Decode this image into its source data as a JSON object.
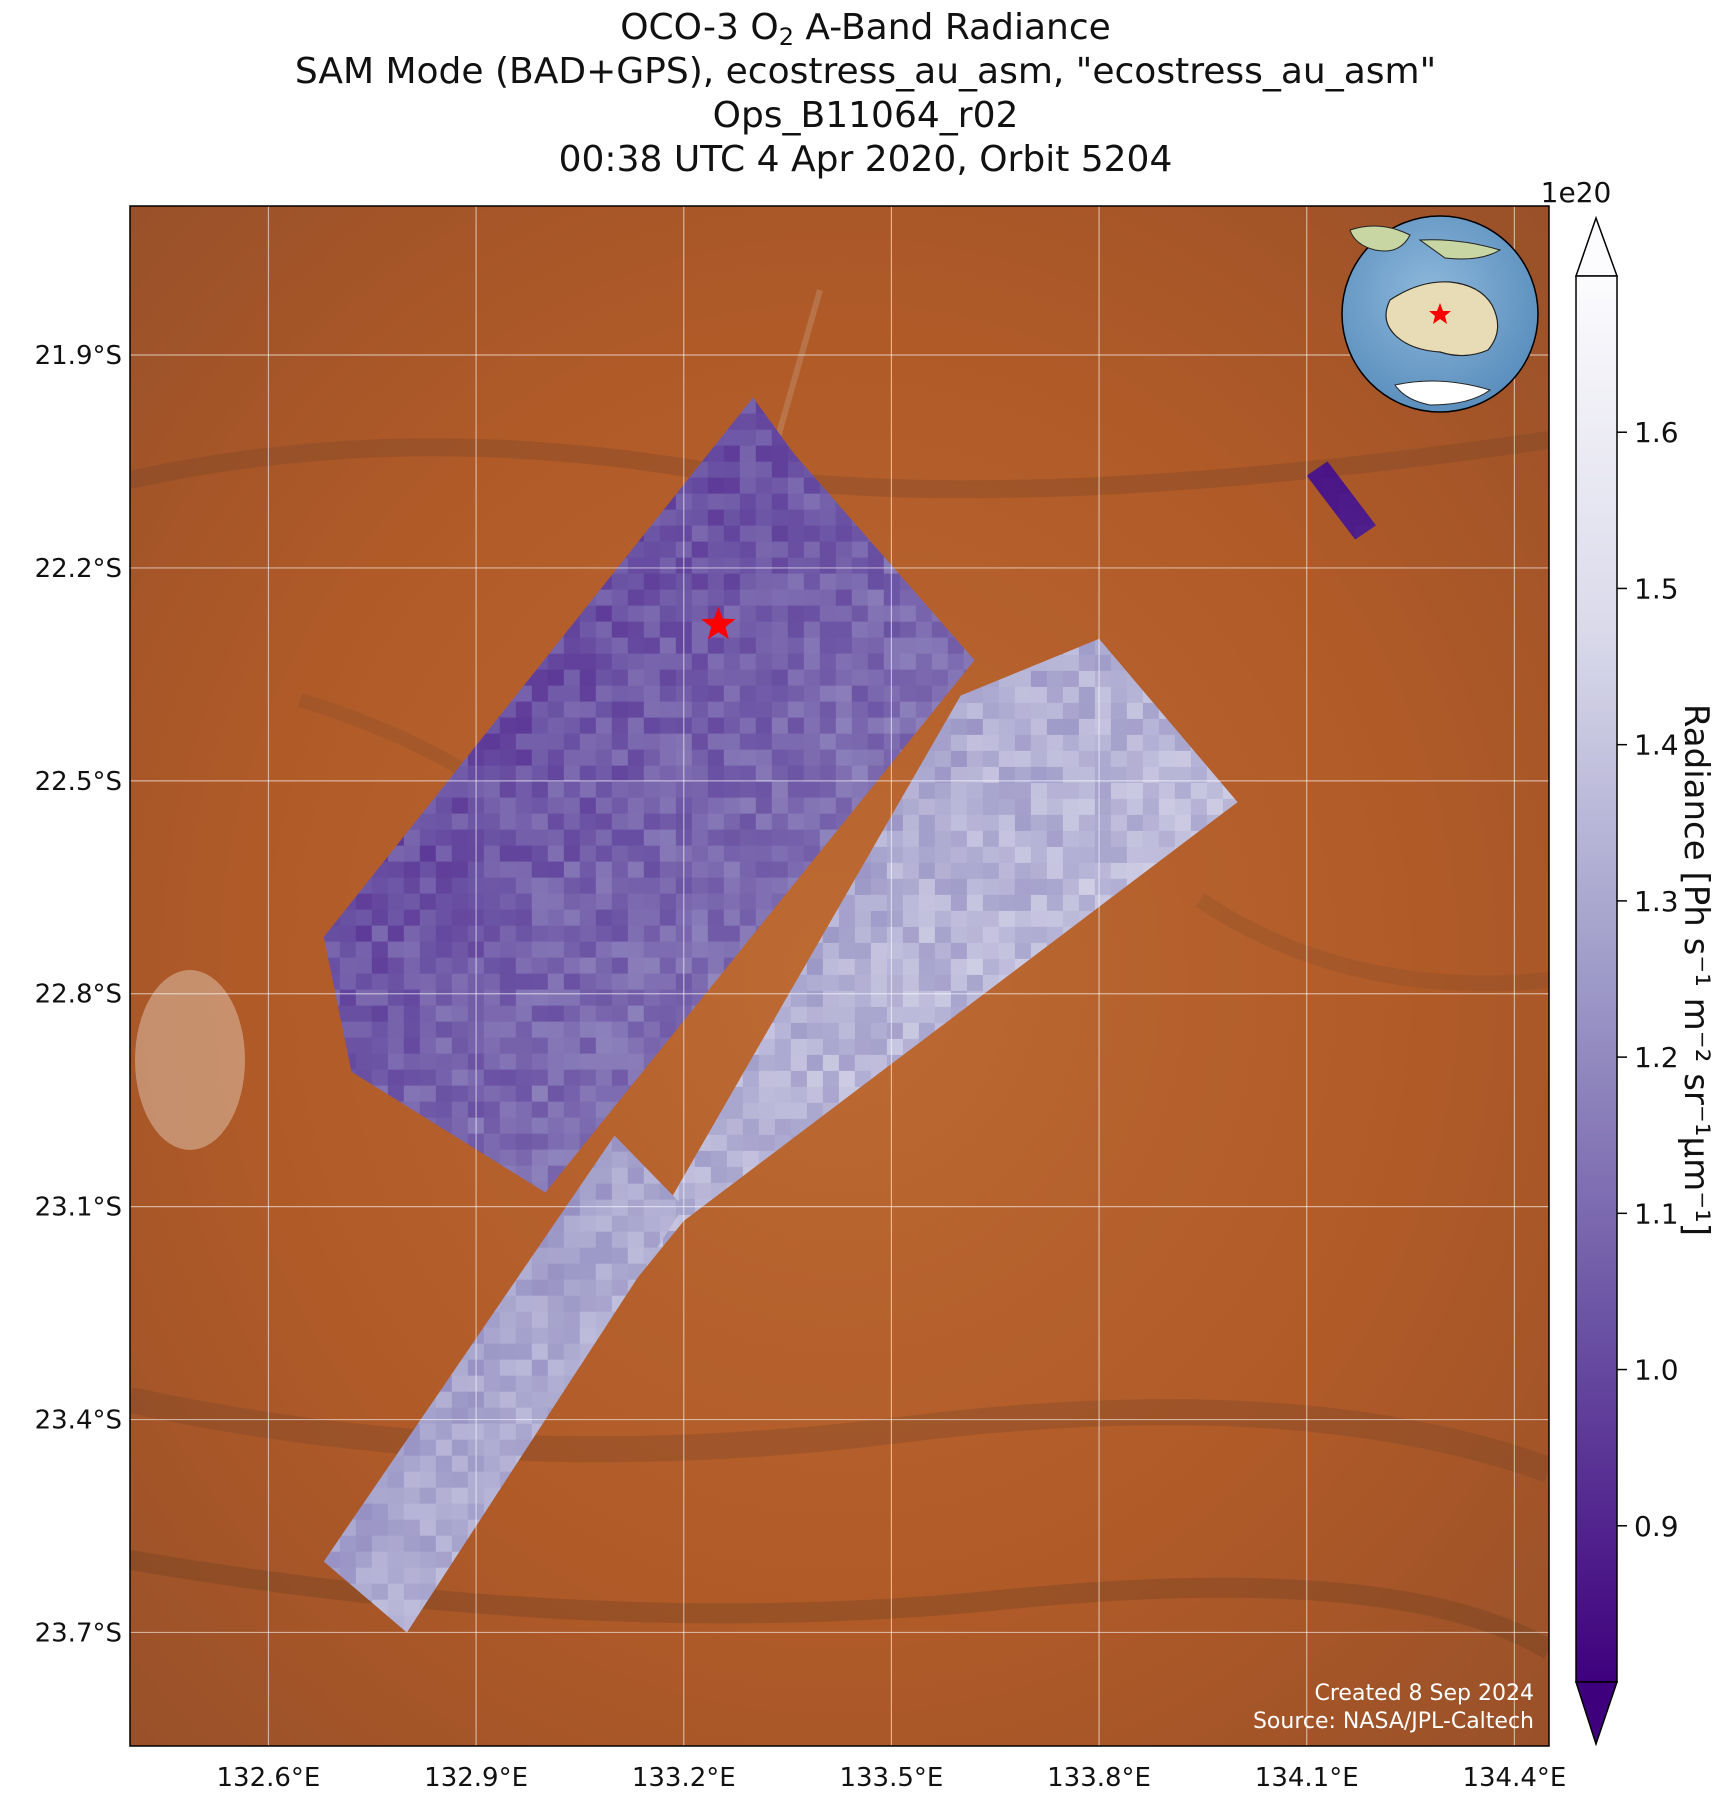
{
  "title": {
    "line1_pre": "OCO-3 O",
    "line1_sub": "2",
    "line1_post": " A-Band Radiance",
    "line2": "SAM Mode (BAD+GPS), ecostress_au_asm, \"ecostress_au_asm\"",
    "line3": "Ops_B11064_r02",
    "line4": "00:38 UTC 4 Apr 2020, Orbit 5204"
  },
  "map": {
    "lon_range": [
      132.4,
      134.45
    ],
    "lat_range": [
      -23.86,
      -21.69
    ],
    "lon_ticks": [
      {
        "value": 132.6,
        "label": "132.6°E"
      },
      {
        "value": 132.9,
        "label": "132.9°E"
      },
      {
        "value": 133.2,
        "label": "133.2°E"
      },
      {
        "value": 133.5,
        "label": "133.5°E"
      },
      {
        "value": 133.8,
        "label": "133.8°E"
      },
      {
        "value": 134.1,
        "label": "134.1°E"
      },
      {
        "value": 134.4,
        "label": "134.4°E"
      }
    ],
    "lat_ticks": [
      {
        "value": -21.9,
        "label": "21.9°S"
      },
      {
        "value": -22.2,
        "label": "22.2°S"
      },
      {
        "value": -22.5,
        "label": "22.5°S"
      },
      {
        "value": -22.8,
        "label": "22.8°S"
      },
      {
        "value": -23.1,
        "label": "23.1°S"
      },
      {
        "value": -23.4,
        "label": "23.4°S"
      },
      {
        "value": -23.7,
        "label": "23.7°S"
      }
    ],
    "target": {
      "lon": 133.25,
      "lat": -22.28
    },
    "inset_globe": "australia-locator-globe",
    "credit_line1": "Created 8 Sep 2024",
    "credit_line2": "Source: NASA/JPL-Caltech",
    "colors": {
      "land": "#b5612c",
      "low": "#3f007d",
      "high": "#fcfbfd",
      "target": "#ff0000"
    }
  },
  "swaths": [
    {
      "name": "swath-west",
      "corners": [
        [
          132.68,
          -22.72
        ],
        [
          133.3,
          -21.96
        ],
        [
          133.36,
          -22.04
        ],
        [
          133.62,
          -22.33
        ],
        [
          133.0,
          -23.08
        ],
        [
          132.72,
          -22.91
        ]
      ],
      "value_range": [
        0.85,
        1.3
      ]
    },
    {
      "name": "swath-middle",
      "corners": [
        [
          132.98,
          -23.43
        ],
        [
          133.6,
          -22.38
        ],
        [
          133.8,
          -22.3
        ],
        [
          134.0,
          -22.53
        ],
        [
          133.2,
          -23.12
        ],
        [
          132.8,
          -23.6
        ]
      ],
      "value_range": [
        1.1,
        1.6
      ]
    },
    {
      "name": "swath-south",
      "corners": [
        [
          132.68,
          -23.6
        ],
        [
          133.1,
          -23.0
        ],
        [
          133.2,
          -23.1
        ],
        [
          132.8,
          -23.7
        ]
      ],
      "value_range": [
        1.1,
        1.5
      ]
    },
    {
      "name": "swath-east-strip",
      "corners": [
        [
          134.1,
          -22.07
        ],
        [
          134.13,
          -22.05
        ],
        [
          134.2,
          -22.14
        ],
        [
          134.17,
          -22.16
        ]
      ],
      "value_range": [
        0.85,
        0.9
      ]
    }
  ],
  "chart_data": {
    "type": "heatmap",
    "xlabel": "",
    "ylabel": "",
    "colorbar": {
      "label": "Radiance [Ph s⁻¹ m⁻² sr⁻¹μm⁻¹]",
      "multiplier": "1e20",
      "ticks": [
        0.9,
        1.0,
        1.1,
        1.2,
        1.3,
        1.4,
        1.5,
        1.6
      ],
      "tick_labels": [
        "0.9",
        "1.0",
        "1.1",
        "1.2",
        "1.3",
        "1.4",
        "1.5",
        "1.6"
      ],
      "range": [
        0.8,
        1.7
      ],
      "extend": "both",
      "cmap": "Purples_r"
    }
  }
}
